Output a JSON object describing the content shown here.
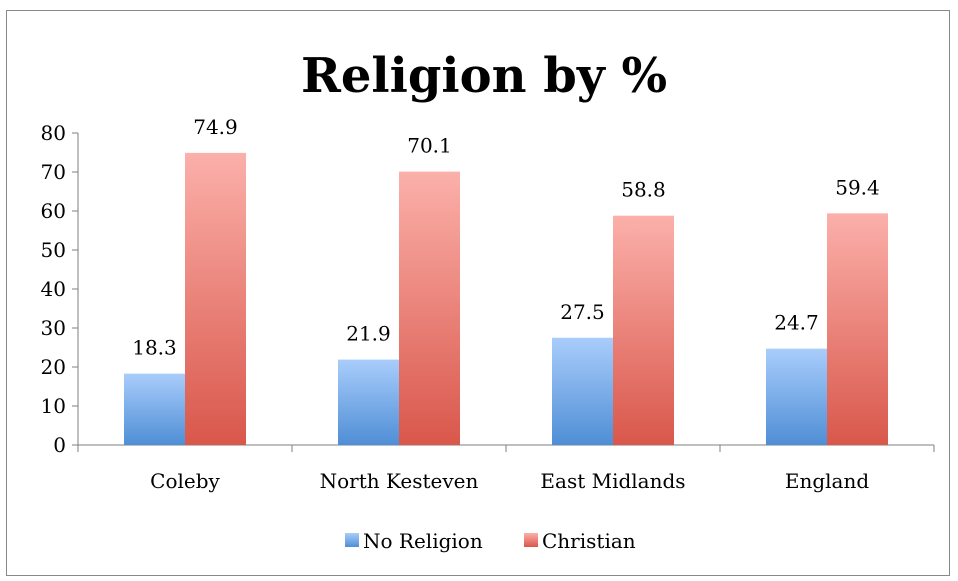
{
  "chart_data": {
    "type": "bar",
    "title": "Religion by %",
    "xlabel": "",
    "ylabel": "",
    "categories": [
      "Coleby",
      "North Kesteven",
      "East Midlands",
      "England"
    ],
    "series": [
      {
        "name": "No Religion",
        "values": [
          18.3,
          21.9,
          27.5,
          24.7
        ],
        "labels": [
          "18.3",
          "21.9",
          "27.5",
          "24.7"
        ],
        "color_top": "#a9cdfb",
        "color_bottom": "#4f8ed6"
      },
      {
        "name": "Christian",
        "values": [
          74.9,
          70.1,
          58.8,
          59.4
        ],
        "labels": [
          "74.9",
          "70.1",
          "58.8",
          "59.4"
        ],
        "color_top": "#fbb0aa",
        "color_bottom": "#d9574b"
      }
    ],
    "ylim": [
      0,
      80
    ],
    "yticks": [
      "0",
      "10",
      "20",
      "30",
      "40",
      "50",
      "60",
      "70",
      "80"
    ],
    "grid": false,
    "legend_position": "bottom"
  }
}
